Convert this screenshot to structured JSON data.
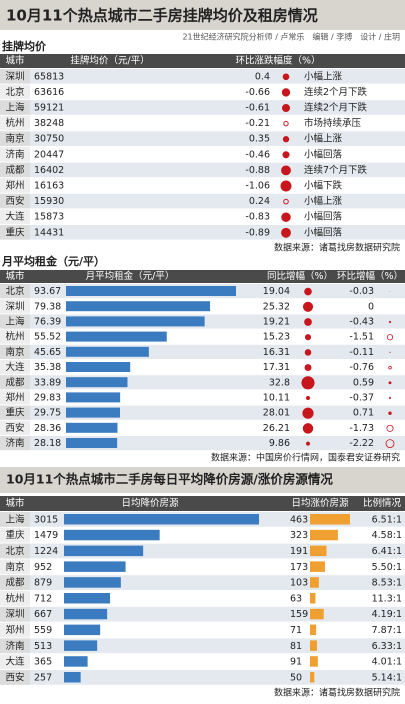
{
  "header": {
    "title": "10月11个热点城市二手房挂牌均价及租房情况",
    "credit": "21世纪经济研究院分析师 / 卢常乐　编辑 / 李搏　设计 / 庄玥"
  },
  "listing": {
    "title": "挂牌均价",
    "columns": [
      "城市",
      "挂牌均价（元/平）",
      "环比涨跌幅度（%）"
    ],
    "rows": [
      {
        "city": "深圳",
        "price": 65813,
        "change": 0.4,
        "trend": "小幅上涨"
      },
      {
        "city": "北京",
        "price": 63616,
        "change": -0.66,
        "trend": "连续2个月下跌"
      },
      {
        "city": "上海",
        "price": 59121,
        "change": -0.61,
        "trend": "连续2个月下跌"
      },
      {
        "city": "杭州",
        "price": 38248,
        "change": -0.21,
        "trend": "市场持续承压"
      },
      {
        "city": "南京",
        "price": 30750,
        "change": 0.35,
        "trend": "小幅上涨"
      },
      {
        "city": "济南",
        "price": 20447,
        "change": -0.46,
        "trend": "小幅回落"
      },
      {
        "city": "成都",
        "price": 16402,
        "change": -0.88,
        "trend": "连续7个月下跌"
      },
      {
        "city": "郑州",
        "price": 16163,
        "change": -1.06,
        "trend": "小幅下跌"
      },
      {
        "city": "西安",
        "price": 15930,
        "change": 0.24,
        "trend": "小幅上涨"
      },
      {
        "city": "大连",
        "price": 15873,
        "change": -0.83,
        "trend": "小幅回落"
      },
      {
        "city": "重庆",
        "price": 14431,
        "change": -0.89,
        "trend": "小幅回落"
      }
    ],
    "source": "数据来源：诸葛找房数据研究院"
  },
  "rent": {
    "title": "月平均租金（元/平）",
    "columns": [
      "城市",
      "月平均租金（元/平）",
      "同比增幅（%）",
      "环比增幅（%）"
    ],
    "rows": [
      {
        "city": "北京",
        "rent": 93.67,
        "yoy": 19.04,
        "mom": -0.03
      },
      {
        "city": "深圳",
        "rent": 79.38,
        "yoy": 25.32,
        "mom": 0
      },
      {
        "city": "上海",
        "rent": 76.39,
        "yoy": 19.21,
        "mom": -0.43
      },
      {
        "city": "杭州",
        "rent": 55.52,
        "yoy": 15.23,
        "mom": -1.51
      },
      {
        "city": "南京",
        "rent": 45.65,
        "yoy": 16.31,
        "mom": -0.11
      },
      {
        "city": "大连",
        "rent": 35.38,
        "yoy": 17.31,
        "mom": -0.76
      },
      {
        "city": "成都",
        "rent": 33.89,
        "yoy": 32.8,
        "mom": 0.59
      },
      {
        "city": "郑州",
        "rent": 29.83,
        "yoy": 10.11,
        "mom": -0.37
      },
      {
        "city": "重庆",
        "rent": 29.75,
        "yoy": 28.01,
        "mom": 0.71
      },
      {
        "city": "西安",
        "rent": 28.36,
        "yoy": 26.21,
        "mom": -1.73
      },
      {
        "city": "济南",
        "rent": 28.18,
        "yoy": 9.86,
        "mom": -2.22
      }
    ],
    "source": "数据来源：中国房价行情网，国泰君安证券研究"
  },
  "daily": {
    "title": "10月11个热点城市二手房每日平均降价房源/涨价房源情况",
    "columns": [
      "城市",
      "日均降价房源",
      "日均涨价房源",
      "比例情况"
    ],
    "rows": [
      {
        "city": "上海",
        "down": 3015,
        "up": 463,
        "ratio": "6.51:1"
      },
      {
        "city": "重庆",
        "down": 1479,
        "up": 323,
        "ratio": "4.58:1"
      },
      {
        "city": "北京",
        "down": 1224,
        "up": 191,
        "ratio": "6.41:1"
      },
      {
        "city": "南京",
        "down": 952,
        "up": 173,
        "ratio": "5.50:1"
      },
      {
        "city": "成都",
        "down": 879,
        "up": 103,
        "ratio": "8.53:1"
      },
      {
        "city": "杭州",
        "down": 712,
        "up": 63,
        "ratio": "11.3:1"
      },
      {
        "city": "深圳",
        "down": 667,
        "up": 159,
        "ratio": "4.19:1"
      },
      {
        "city": "郑州",
        "down": 559,
        "up": 71,
        "ratio": "7.87:1"
      },
      {
        "city": "济南",
        "down": 513,
        "up": 81,
        "ratio": "6.33:1"
      },
      {
        "city": "大连",
        "down": 365,
        "up": 91,
        "ratio": "4.01:1"
      },
      {
        "city": "西安",
        "down": 257,
        "up": 50,
        "ratio": "5.14:1"
      }
    ],
    "source": "数据来源：诸葛找房数据研究院"
  }
}
